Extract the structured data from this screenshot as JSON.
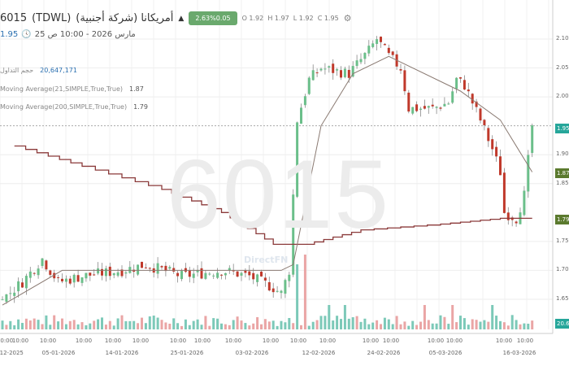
{
  "header": {
    "symbol": "6015",
    "exchange": "(TDWL)",
    "name": "أمريكانا (شركة أجنبية)",
    "direction_icon": "triangle-up",
    "change": "2.63%0.05",
    "open_label": "O",
    "open": "1.92",
    "high_label": "H",
    "high": "1.97",
    "low_label": "L",
    "low": "1.92",
    "close_label": "C",
    "close": "1.95",
    "last": "1.95",
    "datetime": "25 مارس 2026 - 10:00 ص"
  },
  "legend": [
    {
      "label": "حجم التداول",
      "value": "20,647,171"
    },
    {
      "label": "Moving Average(21,SIMPLE,True,True)",
      "value": "1.87"
    },
    {
      "label": "Moving Average(200,SIMPLE,True,True)",
      "value": "1.79"
    }
  ],
  "watermark": {
    "text": "6015",
    "brand": "DirectFN"
  },
  "colors": {
    "up": "#26a69a",
    "down": "#c0392b",
    "ma200": "#8b3a3a",
    "ma21": "#8a7a72",
    "badge": "#6aa96d",
    "last_tag": "#26a69a",
    "ma_tag": "#5b7a2e"
  },
  "price_axis": {
    "ticks": [
      "2.10",
      "2.05",
      "2.00",
      "1.90",
      "1.85",
      "1.75",
      "1.70",
      "1.65"
    ],
    "tags": {
      "last": "1.95",
      "ma21": "1.87",
      "ma200": "1.79",
      "volume": "20.6"
    }
  },
  "time_axis": {
    "times": [
      "10:00",
      "10:00",
      "10:00",
      "10:00",
      "10:00",
      "10:00",
      "10:00",
      "10:00",
      "10:00",
      "10:00",
      "10:00",
      "10:00",
      "10:00",
      "10:00",
      "10:00",
      "10:00",
      "10:00",
      "10:00"
    ],
    "dates": [
      "-12-2025",
      "05-01-2026",
      "14-01-2026",
      "25-01-2026",
      "03-02-2026",
      "12-02-2026",
      "24-02-2026",
      "05-03-2026",
      "16-03-2026"
    ]
  },
  "chart_data": {
    "type": "candlestick",
    "ylim": [
      1.62,
      2.13
    ],
    "grid": true,
    "close_trend": [
      [
        0,
        1.65
      ],
      [
        5,
        1.68
      ],
      [
        10,
        1.72
      ],
      [
        14,
        1.68
      ],
      [
        20,
        1.69
      ],
      [
        30,
        1.7
      ],
      [
        36,
        1.71
      ],
      [
        45,
        1.69
      ],
      [
        55,
        1.7
      ],
      [
        62,
        1.69
      ],
      [
        68,
        1.67
      ],
      [
        70,
        1.66
      ],
      [
        72,
        1.7
      ],
      [
        74,
        1.96
      ],
      [
        77,
        2.03
      ],
      [
        80,
        2.05
      ],
      [
        87,
        2.04
      ],
      [
        92,
        2.08
      ],
      [
        94,
        2.1
      ],
      [
        97,
        2.07
      ],
      [
        100,
        2.05
      ],
      [
        102,
        1.98
      ],
      [
        108,
        1.98
      ],
      [
        112,
        1.99
      ],
      [
        114,
        2.03
      ],
      [
        116,
        2.02
      ],
      [
        120,
        1.96
      ],
      [
        123,
        1.91
      ],
      [
        125,
        1.87
      ],
      [
        126,
        1.8
      ],
      [
        129,
        1.79
      ],
      [
        131,
        1.83
      ],
      [
        133,
        1.95
      ]
    ],
    "ma200": [
      [
        3,
        1.915
      ],
      [
        20,
        1.88
      ],
      [
        40,
        1.84
      ],
      [
        55,
        1.8
      ],
      [
        68,
        1.745
      ],
      [
        76,
        1.745
      ],
      [
        90,
        1.77
      ],
      [
        110,
        1.78
      ],
      [
        125,
        1.79
      ],
      [
        133,
        1.79
      ]
    ],
    "ma21": [
      [
        0,
        1.64
      ],
      [
        15,
        1.7
      ],
      [
        70,
        1.7
      ],
      [
        73,
        1.71
      ],
      [
        80,
        1.95
      ],
      [
        88,
        2.04
      ],
      [
        97,
        2.07
      ],
      [
        115,
        2.01
      ],
      [
        125,
        1.96
      ],
      [
        133,
        1.87
      ]
    ]
  }
}
